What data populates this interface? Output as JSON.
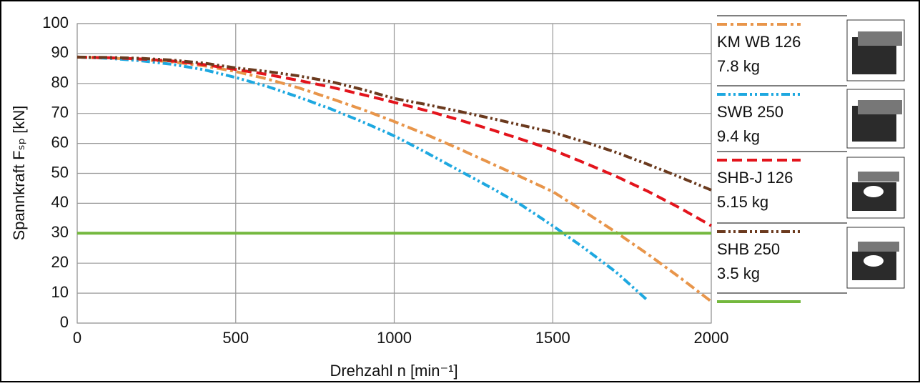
{
  "chart_data": {
    "type": "line",
    "x_label": "Drehzahl n [min⁻¹]",
    "y_label": "Spannkraft Fₛₚ [kN]",
    "x": [
      0,
      100,
      200,
      300,
      400,
      500,
      600,
      700,
      800,
      900,
      1000,
      1100,
      1200,
      1300,
      1400,
      1500,
      1600,
      1700,
      1800,
      1900,
      2000
    ],
    "series": [
      {
        "name": "KM WB 126",
        "weight": "7.8 kg",
        "color": "#e8954a",
        "dash": "14,5,4,5",
        "values": [
          88.8,
          88.5,
          88,
          87.2,
          85.9,
          84,
          81.5,
          78.5,
          75,
          71.3,
          67.3,
          63,
          58.4,
          53.6,
          48.8,
          43.9,
          37.2,
          30.3,
          23,
          15.3,
          7.2
        ]
      },
      {
        "name": "SWB 250",
        "weight": "9.4 kg",
        "color": "#1ea8e0",
        "dash": "12,4,3,4,3,4",
        "values": [
          88.8,
          88.4,
          87.6,
          86.4,
          84.6,
          82,
          79,
          75.4,
          71.5,
          67.2,
          62.5,
          57,
          51.2,
          45.5,
          39.5,
          32.5,
          25,
          17,
          7.5,
          null,
          null
        ]
      },
      {
        "name": "SHB-J 126",
        "weight": "5.15 kg",
        "color": "#e3141c",
        "dash": "14,7",
        "values": [
          88.8,
          88.6,
          88.2,
          87.5,
          86.3,
          84.7,
          83,
          81,
          78.8,
          76.3,
          73.7,
          71,
          68,
          64.8,
          61.4,
          57.8,
          53.5,
          49,
          44,
          38.5,
          32.5
        ]
      },
      {
        "name": "SHB 250",
        "weight": "3.5 kg",
        "color": "#6b3a1e",
        "dash": "12,4,3,4,3,4",
        "values": [
          88.8,
          88.7,
          88.4,
          87.8,
          86.8,
          85.2,
          84,
          82.5,
          80.6,
          78,
          75,
          73,
          70.8,
          68.5,
          66.1,
          63.7,
          60.5,
          57,
          53,
          48.8,
          44.4
        ]
      },
      {
        "color": "#74b83e",
        "dash": "none",
        "values": [
          30,
          30,
          30,
          30,
          30,
          30,
          30,
          30,
          30,
          30,
          30,
          30,
          30,
          30,
          30,
          30,
          30,
          30,
          30,
          30,
          30
        ]
      }
    ],
    "xlim": [
      0,
      2000
    ],
    "xticks": [
      0,
      500,
      1000,
      1500,
      2000
    ],
    "ylim": [
      0,
      100
    ],
    "yticks": [
      0,
      10,
      20,
      30,
      40,
      50,
      60,
      70,
      80,
      90,
      100
    ],
    "grid": true
  }
}
